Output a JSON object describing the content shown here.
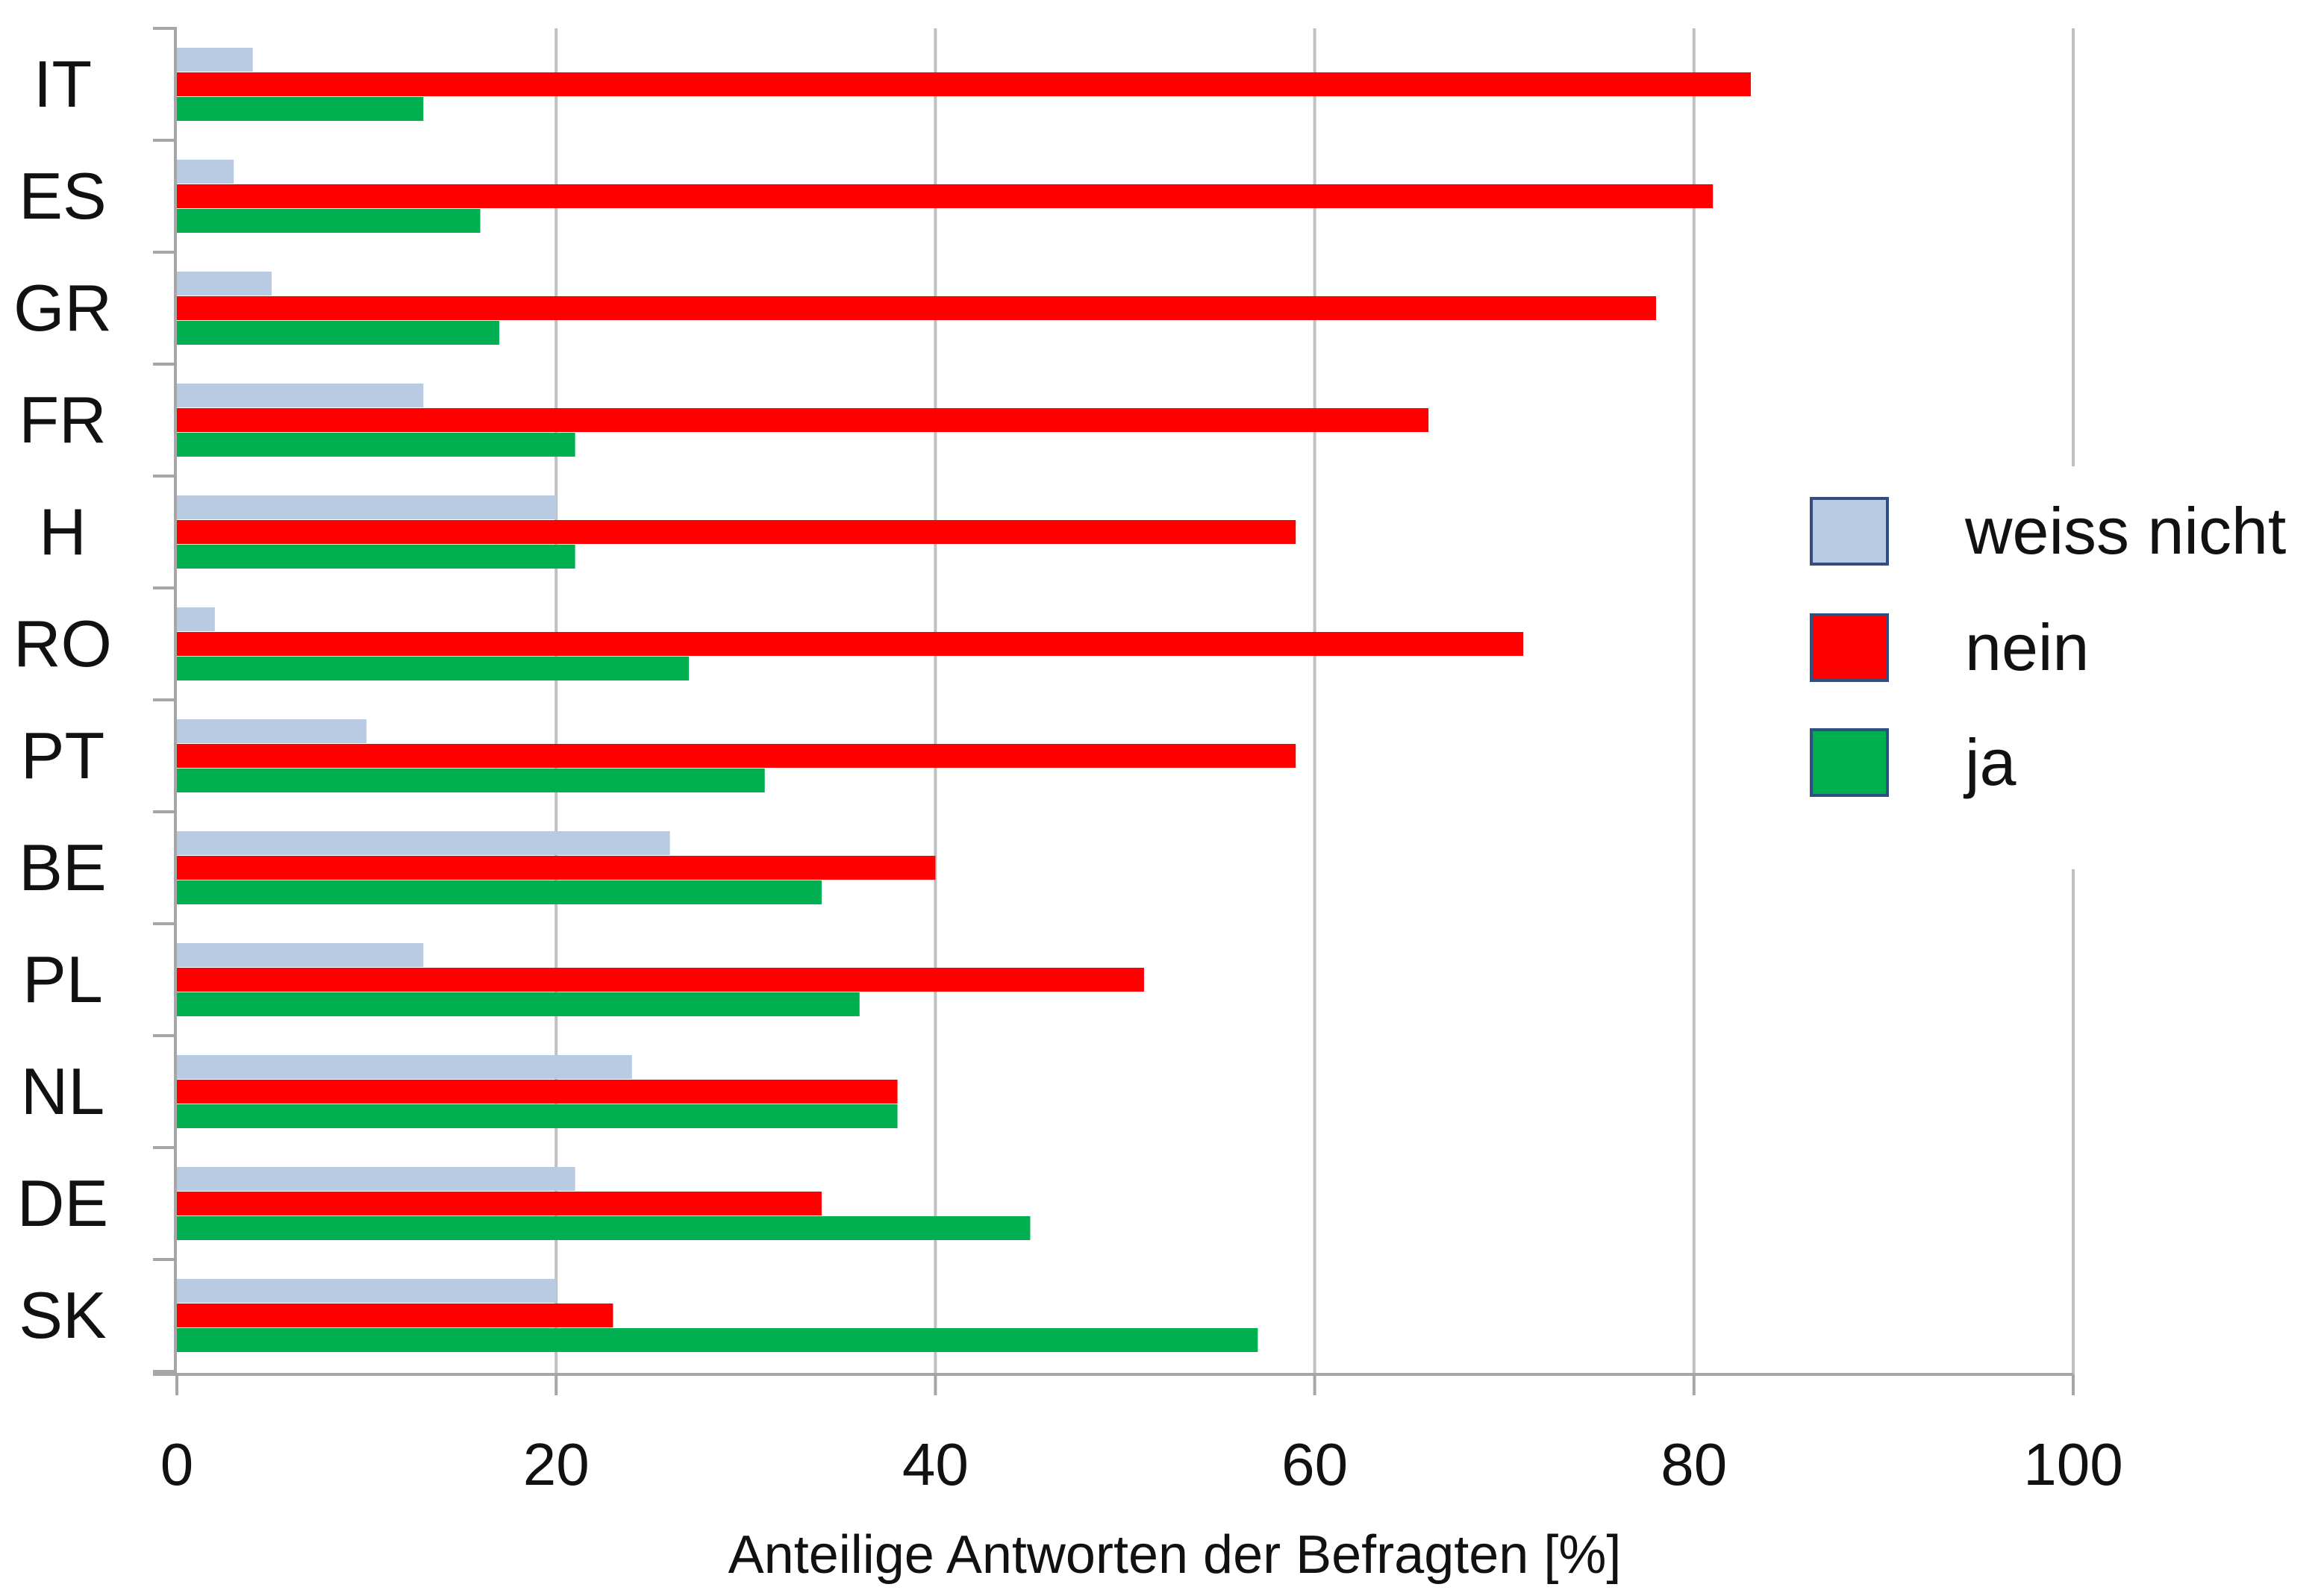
{
  "chart_data": {
    "type": "bar",
    "orientation": "horizontal",
    "categories": [
      "IT",
      "ES",
      "GR",
      "FR",
      "H",
      "RO",
      "PT",
      "BE",
      "PL",
      "NL",
      "DE",
      "SK"
    ],
    "series": [
      {
        "name": "weiss nicht",
        "color": "#b9cbe3",
        "values": [
          4,
          3,
          5,
          13,
          20,
          2,
          10,
          26,
          13,
          24,
          21,
          20
        ]
      },
      {
        "name": "nein",
        "color": "#ff0000",
        "values": [
          83,
          81,
          78,
          66,
          59,
          71,
          59,
          40,
          51,
          38,
          34,
          23
        ]
      },
      {
        "name": "ja",
        "color": "#00b050",
        "values": [
          13,
          16,
          17,
          21,
          21,
          27,
          31,
          34,
          36,
          38,
          45,
          57
        ]
      }
    ],
    "xlabel": "Anteilige Antworten der Befragten [%]",
    "ylabel": "",
    "xlim": [
      0,
      100
    ],
    "xticks": [
      0,
      20,
      40,
      60,
      80,
      100
    ],
    "xtick_labels": [
      "0",
      "20",
      "40",
      "60",
      "80",
      "100"
    ],
    "grid": "vertical",
    "legend_placement": "right"
  }
}
